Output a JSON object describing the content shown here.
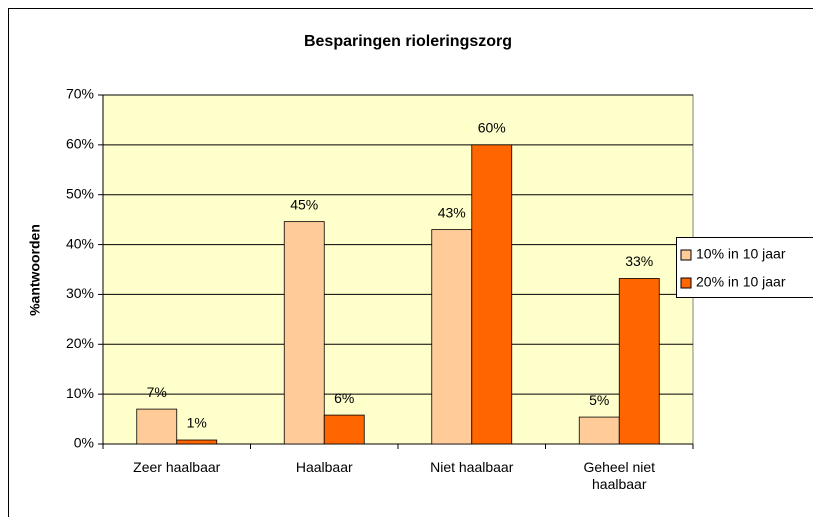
{
  "chart_data": {
    "type": "bar",
    "title": "Besparingen rioleringszorg",
    "ylabel": "%antwoorden",
    "categories": [
      "Zeer haalbaar",
      "Haalbaar",
      "Niet haalbaar",
      "Geheel niet haalbaar"
    ],
    "series": [
      {
        "name": "10% in 10 jaar",
        "color": "#ffcc99",
        "values": [
          7,
          44.6,
          43,
          5.4
        ],
        "value_labels": [
          "7%",
          "45%",
          "43%",
          "5%"
        ]
      },
      {
        "name": "20% in 10 jaar",
        "color": "#ff6600",
        "values": [
          0.8,
          5.8,
          60,
          33.2
        ],
        "value_labels": [
          "1%",
          "6%",
          "60%",
          "33%"
        ]
      }
    ],
    "ylim": [
      0,
      70
    ],
    "yticks": [
      {
        "value": 0,
        "label": "0%"
      },
      {
        "value": 10,
        "label": "10%"
      },
      {
        "value": 20,
        "label": "20%"
      },
      {
        "value": 30,
        "label": "30%"
      },
      {
        "value": 40,
        "label": "40%"
      },
      {
        "value": 50,
        "label": "50%"
      },
      {
        "value": 60,
        "label": "60%"
      },
      {
        "value": 70,
        "label": "70%"
      }
    ],
    "grid": true,
    "legend": "right",
    "plot_background": "#ffffcc"
  }
}
